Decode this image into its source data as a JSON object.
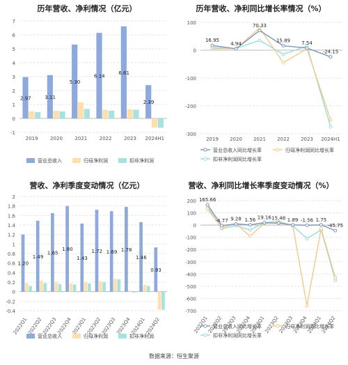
{
  "source_text": "数据来源：恒生聚源",
  "colors": {
    "revenue": "#8ea9db",
    "parent_profit": "#ffe0ad",
    "deducted_profit": "#a6e3e0",
    "revenue_line": "#8095b8",
    "parent_line": "#f2c98a",
    "deducted_line": "#96dcd8",
    "grid": "#e6e6e6",
    "axis_text": "#555555"
  },
  "chart_data": [
    {
      "id": "annual_amounts",
      "type": "bar",
      "title": "历年营收、净利情况（亿元）",
      "categories": [
        "2019",
        "2020",
        "2021",
        "2022",
        "2023",
        "2024H1"
      ],
      "ylim": [
        -1,
        7
      ],
      "yticks": [
        "-1",
        "0",
        "1",
        "2",
        "3",
        "4",
        "5",
        "6",
        "7"
      ],
      "grid": true,
      "legend_position": "bottom",
      "series": [
        {
          "name": "营业总收入",
          "values": [
            2.97,
            3.11,
            5.3,
            6.14,
            6.61,
            2.39
          ],
          "labels": [
            "2.97",
            "3.11",
            "5.30",
            "6.14",
            "6.61",
            "2.39"
          ]
        },
        {
          "name": "归母净利润",
          "values": [
            0.52,
            0.55,
            1.15,
            0.62,
            0.65,
            -0.65
          ]
        },
        {
          "name": "扣非净利润",
          "values": [
            0.45,
            0.5,
            0.68,
            0.55,
            0.62,
            -0.67
          ]
        }
      ]
    },
    {
      "id": "annual_growth",
      "type": "line",
      "title": "历年营收、净利同比增长率情况（%）",
      "categories": [
        "2019",
        "2020",
        "2021",
        "2022",
        "2023",
        "2024H1"
      ],
      "ylim": [
        -300,
        100
      ],
      "yticks": [
        "-300",
        "-200",
        "-100",
        "0",
        "100"
      ],
      "grid": true,
      "legend_position": "bottom",
      "series": [
        {
          "name": "营业总收入同比增长率",
          "values": [
            16.95,
            4.94,
            70.33,
            15.89,
            7.54,
            -24.15
          ],
          "labels": [
            "16.95",
            "4.94",
            "70.33",
            "15.89",
            "7.54",
            "-24.15"
          ]
        },
        {
          "name": "归母净利润同比增长率",
          "values": [
            10,
            5,
            80,
            -45,
            5,
            -250
          ]
        },
        {
          "name": "扣非净利润同比增长率",
          "values": [
            5,
            6,
            35,
            -15,
            15,
            -275
          ]
        }
      ]
    },
    {
      "id": "quarterly_amounts",
      "type": "bar",
      "title": "营收、净利季度变动情况（亿元）",
      "categories": [
        "2022Q1",
        "2022Q2",
        "2022Q3",
        "2022Q4",
        "2023Q1",
        "2023Q2",
        "2023Q3",
        "2023Q4",
        "2024Q1",
        "2024Q2"
      ],
      "ylim": [
        -0.4,
        2.0
      ],
      "yticks": [
        "-0.4",
        "-0.2",
        "0",
        "0.2",
        "0.4",
        "0.6",
        "0.8",
        "1",
        "1.2",
        "1.4",
        "1.6",
        "1.8",
        "2"
      ],
      "grid": true,
      "legend_position": "bottom",
      "series": [
        {
          "name": "营业总收入",
          "values": [
            1.2,
            1.49,
            1.65,
            1.8,
            1.43,
            1.72,
            1.69,
            1.78,
            1.46,
            0.93
          ],
          "labels": [
            "1.20",
            "1.49",
            "1.65",
            "1.80",
            "1.43",
            "1.72",
            "1.69",
            "1.78",
            "1.46",
            "0.93"
          ]
        },
        {
          "name": "归母净利润",
          "values": [
            0.18,
            0.23,
            0.2,
            0.17,
            0.2,
            0.22,
            0.27,
            0.02,
            0.14,
            -0.38
          ]
        },
        {
          "name": "扣非净利润",
          "values": [
            0.12,
            0.18,
            0.16,
            0.15,
            0.17,
            0.2,
            0.26,
            -0.02,
            0.12,
            -0.38
          ]
        }
      ]
    },
    {
      "id": "quarterly_growth",
      "type": "line",
      "title": "营收、净利同比增长率季度变动情况（%）",
      "categories": [
        "2022Q1",
        "2022Q2",
        "2022Q3",
        "2022Q4",
        "2023Q1",
        "2023Q2",
        "2023Q3",
        "2023Q4",
        "2024Q1",
        "2024Q2"
      ],
      "ylim": [
        -700,
        200
      ],
      "yticks": [
        "-700",
        "-600",
        "-500",
        "-400",
        "-300",
        "-200",
        "-100",
        "0",
        "100",
        "200"
      ],
      "grid": true,
      "legend_position": "bottom",
      "series": [
        {
          "name": "营业总收入同比增长率",
          "values": [
            165.66,
            -4.77,
            9.28,
            1.56,
            19.16,
            15.48,
            1.89,
            -1.56,
            1.75,
            -45.75
          ],
          "labels": [
            "165.66",
            "-4.77",
            "9.28",
            "1.56",
            "19.16",
            "15.48",
            "1.89",
            "-1.56",
            "1.75",
            "-45.75"
          ]
        },
        {
          "name": "归母净利润同比增长率",
          "values": [
            130,
            -20,
            10,
            -90,
            15,
            20,
            0,
            -660,
            -30,
            -430
          ]
        },
        {
          "name": "扣非净利润同比增长率",
          "values": [
            150,
            -30,
            -5,
            -40,
            20,
            30,
            -5,
            -110,
            -40,
            -450
          ]
        }
      ]
    }
  ]
}
